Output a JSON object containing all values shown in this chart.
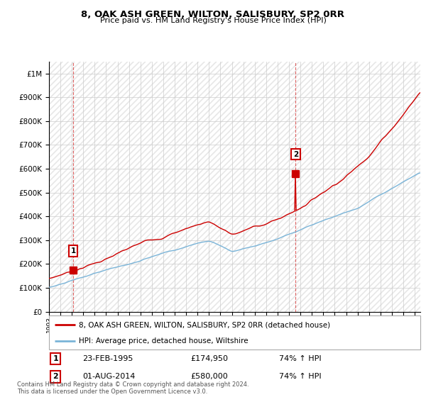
{
  "title": "8, OAK ASH GREEN, WILTON, SALISBURY, SP2 0RR",
  "subtitle": "Price paid vs. HM Land Registry's House Price Index (HPI)",
  "legend_line1": "8, OAK ASH GREEN, WILTON, SALISBURY, SP2 0RR (detached house)",
  "legend_line2": "HPI: Average price, detached house, Wiltshire",
  "footnote": "Contains HM Land Registry data © Crown copyright and database right 2024.\nThis data is licensed under the Open Government Licence v3.0.",
  "transaction1_date": "23-FEB-1995",
  "transaction1_price": "£174,950",
  "transaction1_hpi": "74% ↑ HPI",
  "transaction2_date": "01-AUG-2014",
  "transaction2_price": "£580,000",
  "transaction2_hpi": "74% ↑ HPI",
  "hpi_color": "#7ab4d8",
  "price_color": "#cc0000",
  "marker_color": "#cc0000",
  "grid_color": "#cccccc",
  "hatch_color": "#e8e8e8",
  "t1_year": 1995.12,
  "t1_price": 174950,
  "t2_year": 2014.58,
  "t2_price": 580000,
  "ylim_min": 0,
  "ylim_max": 1050000,
  "xlim_min": 1993,
  "xlim_max": 2025.5
}
